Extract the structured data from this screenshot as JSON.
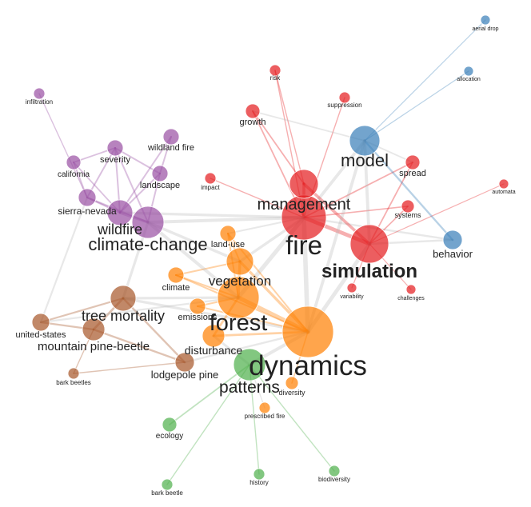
{
  "colors": {
    "fire": "#e41a1c",
    "model": "#377eb8",
    "forest": "#ff7f00",
    "wildfire": "#984ea3",
    "mortality": "#a65628",
    "ecology": "#4daf4a",
    "gray": "#b3b3b3"
  },
  "nodes": [
    {
      "id": "fire",
      "label": "fire",
      "group": "fire"
    },
    {
      "id": "management",
      "label": "management",
      "group": "fire"
    },
    {
      "id": "simulation",
      "label": "simulation",
      "group": "fire"
    },
    {
      "id": "risk",
      "label": "risk",
      "group": "fire"
    },
    {
      "id": "suppression",
      "label": "suppression",
      "group": "fire"
    },
    {
      "id": "growth",
      "label": "growth",
      "group": "fire"
    },
    {
      "id": "spread",
      "label": "spread",
      "group": "fire"
    },
    {
      "id": "impact",
      "label": "impact",
      "group": "fire"
    },
    {
      "id": "systems",
      "label": "systems",
      "group": "fire"
    },
    {
      "id": "automata",
      "label": "automata",
      "group": "fire"
    },
    {
      "id": "variability",
      "label": "variability",
      "group": "fire"
    },
    {
      "id": "challenges",
      "label": "challenges",
      "group": "fire"
    },
    {
      "id": "model",
      "label": "model",
      "group": "model"
    },
    {
      "id": "aerial-drop",
      "label": "aerial drop",
      "group": "model"
    },
    {
      "id": "allocation",
      "label": "allocation",
      "group": "model"
    },
    {
      "id": "behavior",
      "label": "behavior",
      "group": "model"
    },
    {
      "id": "dynamics",
      "label": "dynamics",
      "group": "forest"
    },
    {
      "id": "forest",
      "label": "forest",
      "group": "forest"
    },
    {
      "id": "vegetation",
      "label": "vegetation",
      "group": "forest"
    },
    {
      "id": "land-use",
      "label": "land-use",
      "group": "forest"
    },
    {
      "id": "climate",
      "label": "climate",
      "group": "forest"
    },
    {
      "id": "emissions",
      "label": "emissions",
      "group": "forest"
    },
    {
      "id": "disturbance",
      "label": "disturbance",
      "group": "forest"
    },
    {
      "id": "diversity",
      "label": "diversity",
      "group": "forest"
    },
    {
      "id": "prescribed-fire",
      "label": "prescribed fire",
      "group": "forest"
    },
    {
      "id": "climate-change",
      "label": "climate-change",
      "group": "wildfire"
    },
    {
      "id": "wildfire",
      "label": "wildfire",
      "group": "wildfire"
    },
    {
      "id": "sierra-nevada",
      "label": "sierra-nevada",
      "group": "wildfire"
    },
    {
      "id": "landscape",
      "label": "landscape",
      "group": "wildfire"
    },
    {
      "id": "wildland-fire",
      "label": "wildland fire",
      "group": "wildfire"
    },
    {
      "id": "severity",
      "label": "severity",
      "group": "wildfire"
    },
    {
      "id": "california",
      "label": "california",
      "group": "wildfire"
    },
    {
      "id": "infiltration",
      "label": "infiltration",
      "group": "wildfire"
    },
    {
      "id": "tree-mortality",
      "label": "tree mortality",
      "group": "mortality"
    },
    {
      "id": "mountain-pine-beetle",
      "label": "mountain pine-beetle",
      "group": "mortality"
    },
    {
      "id": "united-states",
      "label": "united-states",
      "group": "mortality"
    },
    {
      "id": "lodgepole-pine",
      "label": "lodgepole pine",
      "group": "mortality"
    },
    {
      "id": "bark-beetles",
      "label": "bark beetles",
      "group": "mortality"
    },
    {
      "id": "patterns",
      "label": "patterns",
      "group": "ecology"
    },
    {
      "id": "ecology",
      "label": "ecology",
      "group": "ecology"
    },
    {
      "id": "bark-beetle",
      "label": "bark beetle",
      "group": "ecology"
    },
    {
      "id": "history",
      "label": "history",
      "group": "ecology"
    },
    {
      "id": "biodiversity",
      "label": "biodiversity",
      "group": "ecology"
    }
  ],
  "edges": [
    [
      "fire",
      "management"
    ],
    [
      "fire",
      "simulation"
    ],
    [
      "fire",
      "risk"
    ],
    [
      "fire",
      "suppression"
    ],
    [
      "fire",
      "growth"
    ],
    [
      "fire",
      "impact"
    ],
    [
      "fire",
      "model"
    ],
    [
      "fire",
      "dynamics"
    ],
    [
      "fire",
      "forest"
    ],
    [
      "fire",
      "vegetation"
    ],
    [
      "fire",
      "climate-change"
    ],
    [
      "fire",
      "wildfire"
    ],
    [
      "fire",
      "behavior"
    ],
    [
      "fire",
      "systems"
    ],
    [
      "fire",
      "spread"
    ],
    [
      "fire",
      "land-use"
    ],
    [
      "management",
      "risk"
    ],
    [
      "management",
      "growth"
    ],
    [
      "management",
      "simulation"
    ],
    [
      "simulation",
      "spread"
    ],
    [
      "simulation",
      "systems"
    ],
    [
      "simulation",
      "automata"
    ],
    [
      "simulation",
      "variability"
    ],
    [
      "simulation",
      "challenges"
    ],
    [
      "simulation",
      "behavior"
    ],
    [
      "simulation",
      "model"
    ],
    [
      "simulation",
      "dynamics"
    ],
    [
      "model",
      "aerial-drop"
    ],
    [
      "model",
      "allocation"
    ],
    [
      "model",
      "behavior"
    ],
    [
      "model",
      "spread"
    ],
    [
      "model",
      "dynamics"
    ],
    [
      "model",
      "growth"
    ],
    [
      "dynamics",
      "forest"
    ],
    [
      "dynamics",
      "vegetation"
    ],
    [
      "dynamics",
      "patterns"
    ],
    [
      "dynamics",
      "diversity"
    ],
    [
      "dynamics",
      "disturbance"
    ],
    [
      "dynamics",
      "climate"
    ],
    [
      "dynamics",
      "tree-mortality"
    ],
    [
      "dynamics",
      "land-use"
    ],
    [
      "dynamics",
      "emissions"
    ],
    [
      "forest",
      "vegetation"
    ],
    [
      "forest",
      "climate"
    ],
    [
      "forest",
      "emissions"
    ],
    [
      "forest",
      "disturbance"
    ],
    [
      "forest",
      "tree-mortality"
    ],
    [
      "forest",
      "land-use"
    ],
    [
      "vegetation",
      "land-use"
    ],
    [
      "vegetation",
      "climate-change"
    ],
    [
      "vegetation",
      "climate"
    ],
    [
      "patterns",
      "ecology"
    ],
    [
      "patterns",
      "bark-beetle"
    ],
    [
      "patterns",
      "history"
    ],
    [
      "patterns",
      "biodiversity"
    ],
    [
      "patterns",
      "prescribed-fire"
    ],
    [
      "patterns",
      "disturbance"
    ],
    [
      "climate-change",
      "wildfire"
    ],
    [
      "climate-change",
      "sierra-nevada"
    ],
    [
      "climate-change",
      "landscape"
    ],
    [
      "climate-change",
      "tree-mortality"
    ],
    [
      "climate-change",
      "severity"
    ],
    [
      "climate-change",
      "forest"
    ],
    [
      "wildfire",
      "sierra-nevada"
    ],
    [
      "wildfire",
      "landscape"
    ],
    [
      "wildfire",
      "severity"
    ],
    [
      "wildfire",
      "california"
    ],
    [
      "wildfire",
      "wildland-fire"
    ],
    [
      "sierra-nevada",
      "severity"
    ],
    [
      "sierra-nevada",
      "california"
    ],
    [
      "sierra-nevada",
      "infiltration"
    ],
    [
      "landscape",
      "wildland-fire"
    ],
    [
      "landscape",
      "severity"
    ],
    [
      "severity",
      "california"
    ],
    [
      "tree-mortality",
      "mountain-pine-beetle"
    ],
    [
      "tree-mortality",
      "united-states"
    ],
    [
      "tree-mortality",
      "lodgepole-pine"
    ],
    [
      "mountain-pine-beetle",
      "united-states"
    ],
    [
      "mountain-pine-beetle",
      "lodgepole-pine"
    ],
    [
      "mountain-pine-beetle",
      "bark-beetles"
    ],
    [
      "lodgepole-pine",
      "bark-beetles"
    ],
    [
      "lodgepole-pine",
      "dynamics"
    ],
    [
      "united-states",
      "sierra-nevada"
    ],
    [
      "united-states",
      "forest"
    ]
  ]
}
